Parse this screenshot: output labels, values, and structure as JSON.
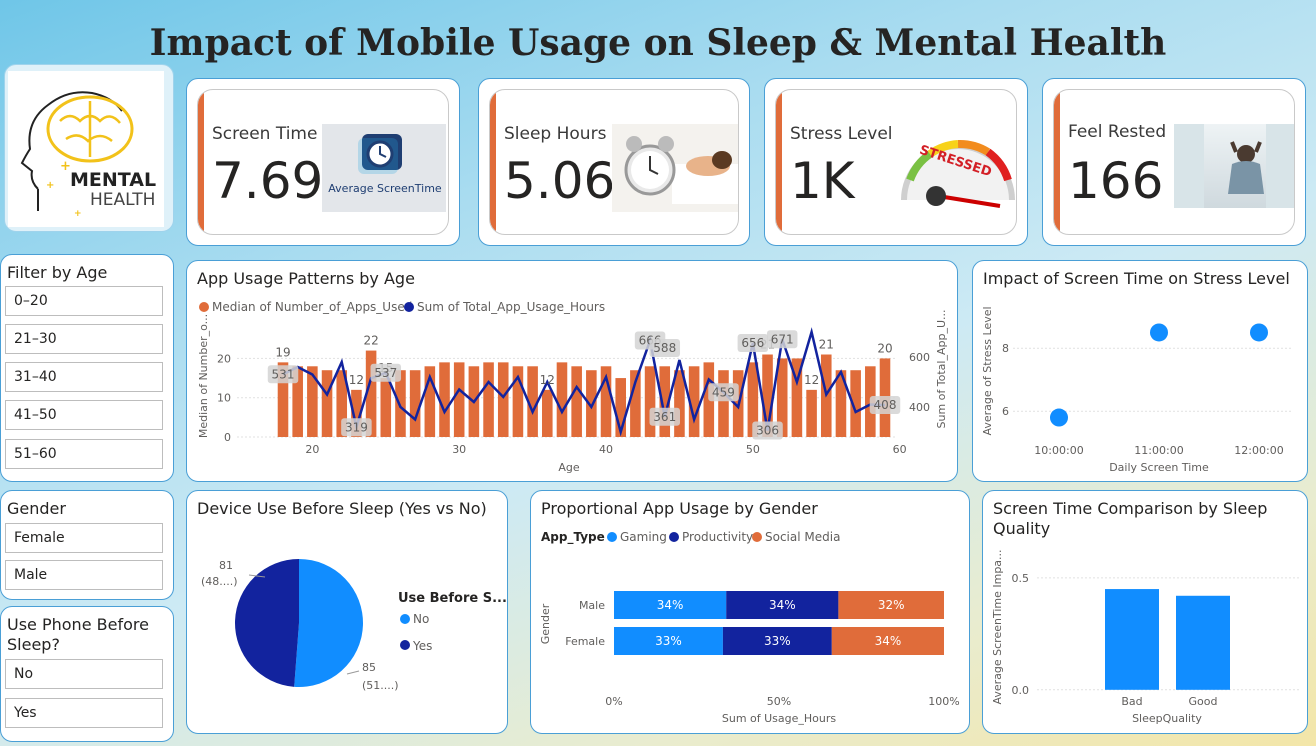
{
  "title": "Impact of Mobile Usage on Sleep & Mental Health",
  "logo": {
    "line1": "MENTAL",
    "line2": "HEALTH"
  },
  "kpis": [
    {
      "label": "Screen Time",
      "value": "7.69",
      "image_caption": "Average ScreenTime",
      "icon": "clock-icon"
    },
    {
      "label": "Sleep Hours",
      "value": "5.06",
      "icon": "alarm-clock-icon"
    },
    {
      "label": "Stress Level",
      "value": "1K",
      "image_caption": "STRESSED",
      "icon": "stress-gauge-icon"
    },
    {
      "label": "Feel Rested",
      "value": "166",
      "icon": "relaxing-person-icon"
    }
  ],
  "age_filter": {
    "title": "Filter by Age",
    "items": [
      "0–20",
      "21–30",
      "31–40",
      "41–50",
      "51–60"
    ]
  },
  "gender_filter": {
    "title": "Gender",
    "items": [
      "Female",
      "Male"
    ]
  },
  "phone_filter": {
    "title": "Use Phone Before Sleep?",
    "items": [
      "No",
      "Yes"
    ]
  },
  "colors": {
    "orange": "#e06c3a",
    "navy": "#12239e",
    "blue": "#118dff"
  },
  "charts": {
    "app_usage": {
      "title": "App Usage Patterns by Age",
      "legend": [
        "Median of Number_of_Apps_Used",
        "Sum of Total_App_Usage_Hours"
      ],
      "ylabel_left": "Median of Number_o...",
      "ylabel_right": "Sum of Total_App_U...",
      "xlabel": "Age",
      "x_ticks": [
        "20",
        "30",
        "40",
        "50",
        "60"
      ],
      "y_left_ticks": [
        "0",
        "10",
        "20"
      ],
      "y_right_ticks": [
        "400",
        "600"
      ],
      "bar_labels": [
        {
          "age": 18,
          "text": "19"
        },
        {
          "age": 24,
          "text": "22"
        },
        {
          "age": 23,
          "text": "12"
        },
        {
          "age": 25,
          "text": "15"
        },
        {
          "age": 36,
          "text": "12"
        },
        {
          "age": 51,
          "text": "21"
        },
        {
          "age": 54,
          "text": "12"
        },
        {
          "age": 55,
          "text": "21"
        },
        {
          "age": 59,
          "text": "20"
        }
      ],
      "line_labels": [
        {
          "age": 18,
          "text": "531"
        },
        {
          "age": 23,
          "text": "319"
        },
        {
          "age": 25,
          "text": "537"
        },
        {
          "age": 43,
          "text": "666"
        },
        {
          "age": 44,
          "text": "588"
        },
        {
          "age": 44,
          "text": "361"
        },
        {
          "age": 48,
          "text": "459"
        },
        {
          "age": 50,
          "text": "656"
        },
        {
          "age": 51,
          "text": "306"
        },
        {
          "age": 52,
          "text": "671"
        },
        {
          "age": 59,
          "text": "408"
        }
      ]
    },
    "stress": {
      "title": "Impact of Screen Time on Stress Level",
      "ylabel": "Average of Stress Level",
      "xlabel": "Daily Screen Time",
      "x_ticks": [
        "10:00:00",
        "11:00:00",
        "12:00:00"
      ],
      "y_ticks": [
        "6",
        "8"
      ]
    },
    "device": {
      "title": "Device Use Before Sleep (Yes vs No)",
      "legend_title": "Use Before S...",
      "legend": [
        "No",
        "Yes"
      ],
      "label_yes_value": "81",
      "label_yes_pct": "(48....)",
      "label_no_value": "85",
      "label_no_pct": "(51....)"
    },
    "gender": {
      "title": "Proportional App Usage by Gender",
      "legend_title": "App_Type",
      "legend": [
        "Gaming",
        "Productivity",
        "Social Media"
      ],
      "ylabel": "Gender",
      "xlabel": "Sum of Usage_Hours",
      "x_ticks": [
        "0%",
        "50%",
        "100%"
      ],
      "rows": [
        {
          "label": "Male",
          "texts": [
            "34%",
            "34%",
            "32%"
          ]
        },
        {
          "label": "Female",
          "texts": [
            "33%",
            "33%",
            "34%"
          ]
        }
      ]
    },
    "sleepq": {
      "title": "Screen Time Comparison by Sleep Quality",
      "ylabel": "Average ScreenTime Impa...",
      "xlabel": "SleepQuality",
      "y_ticks": [
        "0.0",
        "0.5"
      ],
      "categories": [
        "Bad",
        "Good"
      ]
    }
  },
  "chart_data": [
    {
      "type": "bar",
      "title": "App Usage Patterns by Age",
      "x": [
        18,
        19,
        20,
        21,
        22,
        23,
        24,
        25,
        26,
        27,
        28,
        29,
        30,
        31,
        32,
        33,
        34,
        35,
        36,
        37,
        38,
        39,
        40,
        41,
        42,
        43,
        44,
        45,
        46,
        47,
        48,
        49,
        50,
        51,
        52,
        53,
        54,
        55,
        56,
        57,
        58,
        59
      ],
      "series": [
        {
          "name": "Median of Number_of_Apps_Used",
          "kind": "bar",
          "values": [
            19,
            18,
            18,
            17,
            17,
            12,
            22,
            15,
            17,
            17,
            18,
            19,
            19,
            18,
            19,
            19,
            18,
            18,
            12,
            19,
            18,
            17,
            18,
            15,
            17,
            18,
            18,
            17,
            18,
            19,
            17,
            17,
            19,
            21,
            20,
            20,
            12,
            21,
            17,
            17,
            18,
            20
          ]
        },
        {
          "name": "Sum of Total_App_Usage_Hours",
          "kind": "line",
          "axis": "right",
          "values": [
            531,
            560,
            530,
            450,
            580,
            320,
            515,
            537,
            400,
            350,
            520,
            380,
            470,
            420,
            500,
            440,
            520,
            380,
            500,
            380,
            480,
            400,
            520,
            300,
            500,
            666,
            361,
            588,
            350,
            510,
            459,
            400,
            656,
            306,
            671,
            500,
            700,
            450,
            540,
            380,
            410,
            408
          ]
        }
      ],
      "xlabel": "Age",
      "ylim_left": [
        0,
        28
      ],
      "ylim_right": [
        280,
        720
      ]
    },
    {
      "type": "scatter",
      "title": "Impact of Screen Time on Stress Level",
      "x": [
        "10:00:00",
        "11:00:00",
        "12:00:00"
      ],
      "y": [
        5.8,
        8.5,
        8.5
      ],
      "xlabel": "Daily Screen Time",
      "ylabel": "Average of Stress Level",
      "ylim": [
        4.8,
        9.5
      ]
    },
    {
      "type": "pie",
      "title": "Device Use Before Sleep (Yes vs No)",
      "categories": [
        "No",
        "Yes"
      ],
      "values": [
        85,
        81
      ]
    },
    {
      "type": "bar",
      "title": "Proportional App Usage by Gender",
      "categories": [
        "Male",
        "Female"
      ],
      "series": [
        {
          "name": "Gaming",
          "values": [
            34,
            33
          ]
        },
        {
          "name": "Productivity",
          "values": [
            34,
            33
          ]
        },
        {
          "name": "Social Media",
          "values": [
            32,
            34
          ]
        }
      ],
      "xlabel": "Sum of Usage_Hours",
      "ylabel": "Gender"
    },
    {
      "type": "bar",
      "title": "Screen Time Comparison by Sleep Quality",
      "categories": [
        "Bad",
        "Good"
      ],
      "values": [
        0.45,
        0.42
      ],
      "xlabel": "SleepQuality",
      "ylabel": "Average ScreenTime Impa...",
      "ylim": [
        -0.05,
        0.62
      ]
    }
  ]
}
